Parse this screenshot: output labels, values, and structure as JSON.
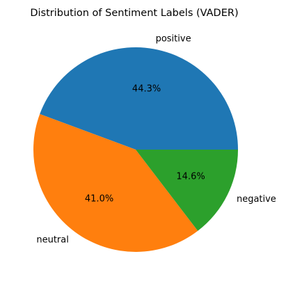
{
  "chart_data": {
    "type": "pie",
    "title": "Distribution of Sentiment Labels (VADER)",
    "start_angle_deg": 0,
    "direction": "counterclockwise",
    "slices": [
      {
        "label": "positive",
        "value": 44.3,
        "pct_label": "44.3%",
        "color": "#1f77b4"
      },
      {
        "label": "neutral",
        "value": 41.0,
        "pct_label": "41.0%",
        "color": "#ff7f0e"
      },
      {
        "label": "negative",
        "value": 14.6,
        "pct_label": "14.6%",
        "color": "#2ca02c"
      }
    ]
  }
}
